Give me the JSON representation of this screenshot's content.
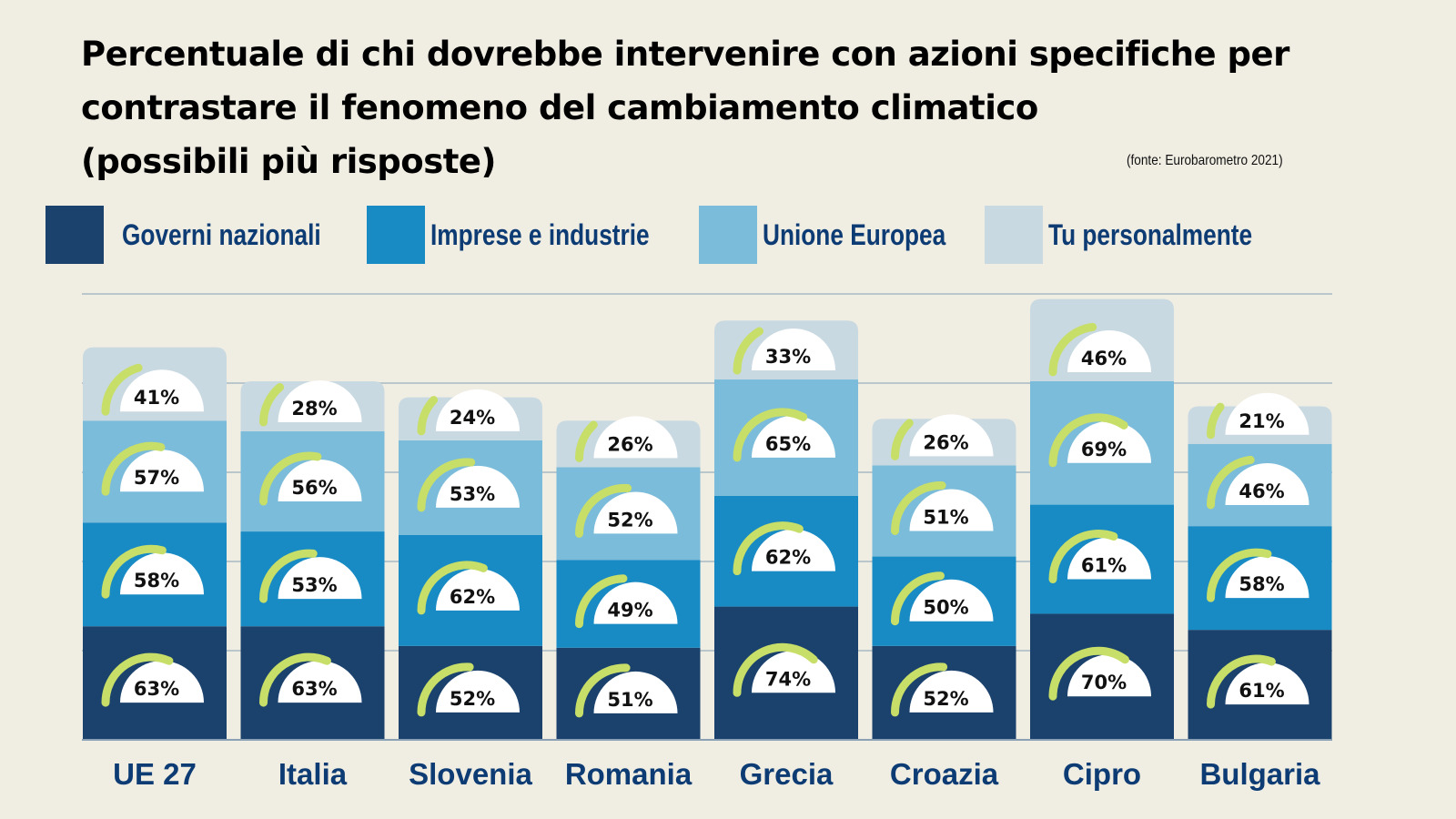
{
  "title_lines": [
    "Percentuale di chi dovrebbe intervenire con azioni specifiche per",
    "contrastare il fenomeno del cambiamento climatico",
    "(possibili più risposte)"
  ],
  "source": "(fonte: Eurobarometro 2021)",
  "legend": [
    {
      "label": "Governi nazionali",
      "color": "#1b426d"
    },
    {
      "label": "Imprese e industrie",
      "color": "#188ac4"
    },
    {
      "label": "Unione Europea",
      "color": "#7bbcda"
    },
    {
      "label": "Tu personalmente",
      "color": "#c9d9e1"
    }
  ],
  "gauge_color": "#c7de68",
  "chart_data": {
    "type": "bar",
    "stacked": true,
    "title": "Percentuale di chi dovrebbe intervenire con azioni specifiche per contrastare il fenomeno del cambiamento climatico (possibili più risposte)",
    "xlabel": "",
    "ylabel": "",
    "unit": "%",
    "grid": true,
    "legend_position": "top",
    "categories": [
      "UE 27",
      "Italia",
      "Slovenia",
      "Romania",
      "Grecia",
      "Croazia",
      "Cipro",
      "Bulgaria"
    ],
    "series": [
      {
        "name": "Governi nazionali",
        "values": [
          63,
          63,
          52,
          51,
          74,
          52,
          70,
          61
        ]
      },
      {
        "name": "Imprese e industrie",
        "values": [
          58,
          53,
          62,
          49,
          62,
          50,
          61,
          58
        ]
      },
      {
        "name": "Unione Europea",
        "values": [
          57,
          56,
          53,
          52,
          65,
          51,
          69,
          46
        ]
      },
      {
        "name": "Tu personalmente",
        "values": [
          41,
          28,
          24,
          26,
          33,
          26,
          46,
          21
        ]
      }
    ]
  }
}
